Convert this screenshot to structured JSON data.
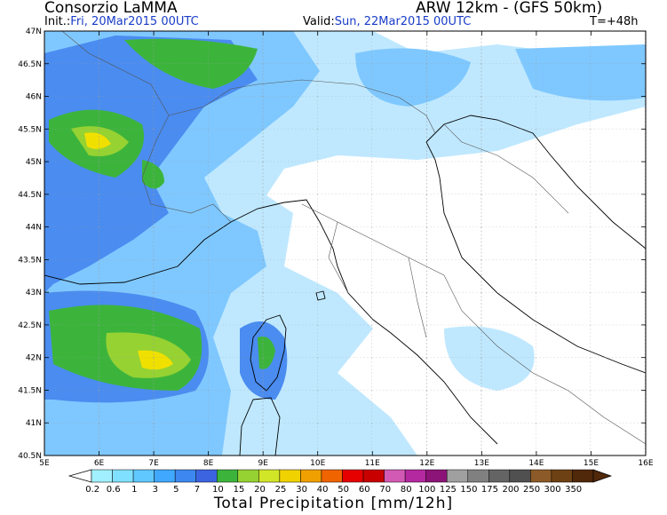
{
  "header": {
    "org": "Consorzio LaMMA",
    "model": "ARW 12km - (GFS 50km)",
    "init_label": "Init.:",
    "init_value": "Fri, 20Mar2015 00UTC",
    "valid_label": "Valid:",
    "valid_value": "Sun, 22Mar2015 00UTC",
    "lead": "T=+48h"
  },
  "map": {
    "lat_labels": [
      "47N",
      "46.5N",
      "46N",
      "45.5N",
      "45N",
      "44.5N",
      "44N",
      "43.5N",
      "43N",
      "42.5N",
      "42N",
      "41.5N",
      "41N",
      "40.5N"
    ],
    "lon_labels": [
      "5E",
      "6E",
      "7E",
      "8E",
      "9E",
      "10E",
      "11E",
      "12E",
      "13E",
      "14E",
      "15E",
      "16E"
    ],
    "background_color": "#bfe8ff"
  },
  "legend": {
    "title": "Total Precipitation [mm/12h]",
    "levels": [
      "0.2",
      "0.6",
      "1",
      "3",
      "5",
      "7",
      "10",
      "15",
      "20",
      "25",
      "30",
      "40",
      "50",
      "60",
      "70",
      "80",
      "100",
      "125",
      "150",
      "175",
      "200",
      "250",
      "300",
      "350"
    ],
    "colors": [
      "#a0f0ff",
      "#80e0ff",
      "#60c8ff",
      "#40a8ff",
      "#3c88f0",
      "#3c64e0",
      "#3cb43c",
      "#96d232",
      "#d2e628",
      "#f0d200",
      "#f0a000",
      "#f06400",
      "#e60000",
      "#c80000",
      "#d25ab4",
      "#b428a0",
      "#8c1478",
      "#a0a0a0",
      "#808080",
      "#646464",
      "#505050",
      "#8c5a28",
      "#6e4114",
      "#50280a"
    ]
  }
}
